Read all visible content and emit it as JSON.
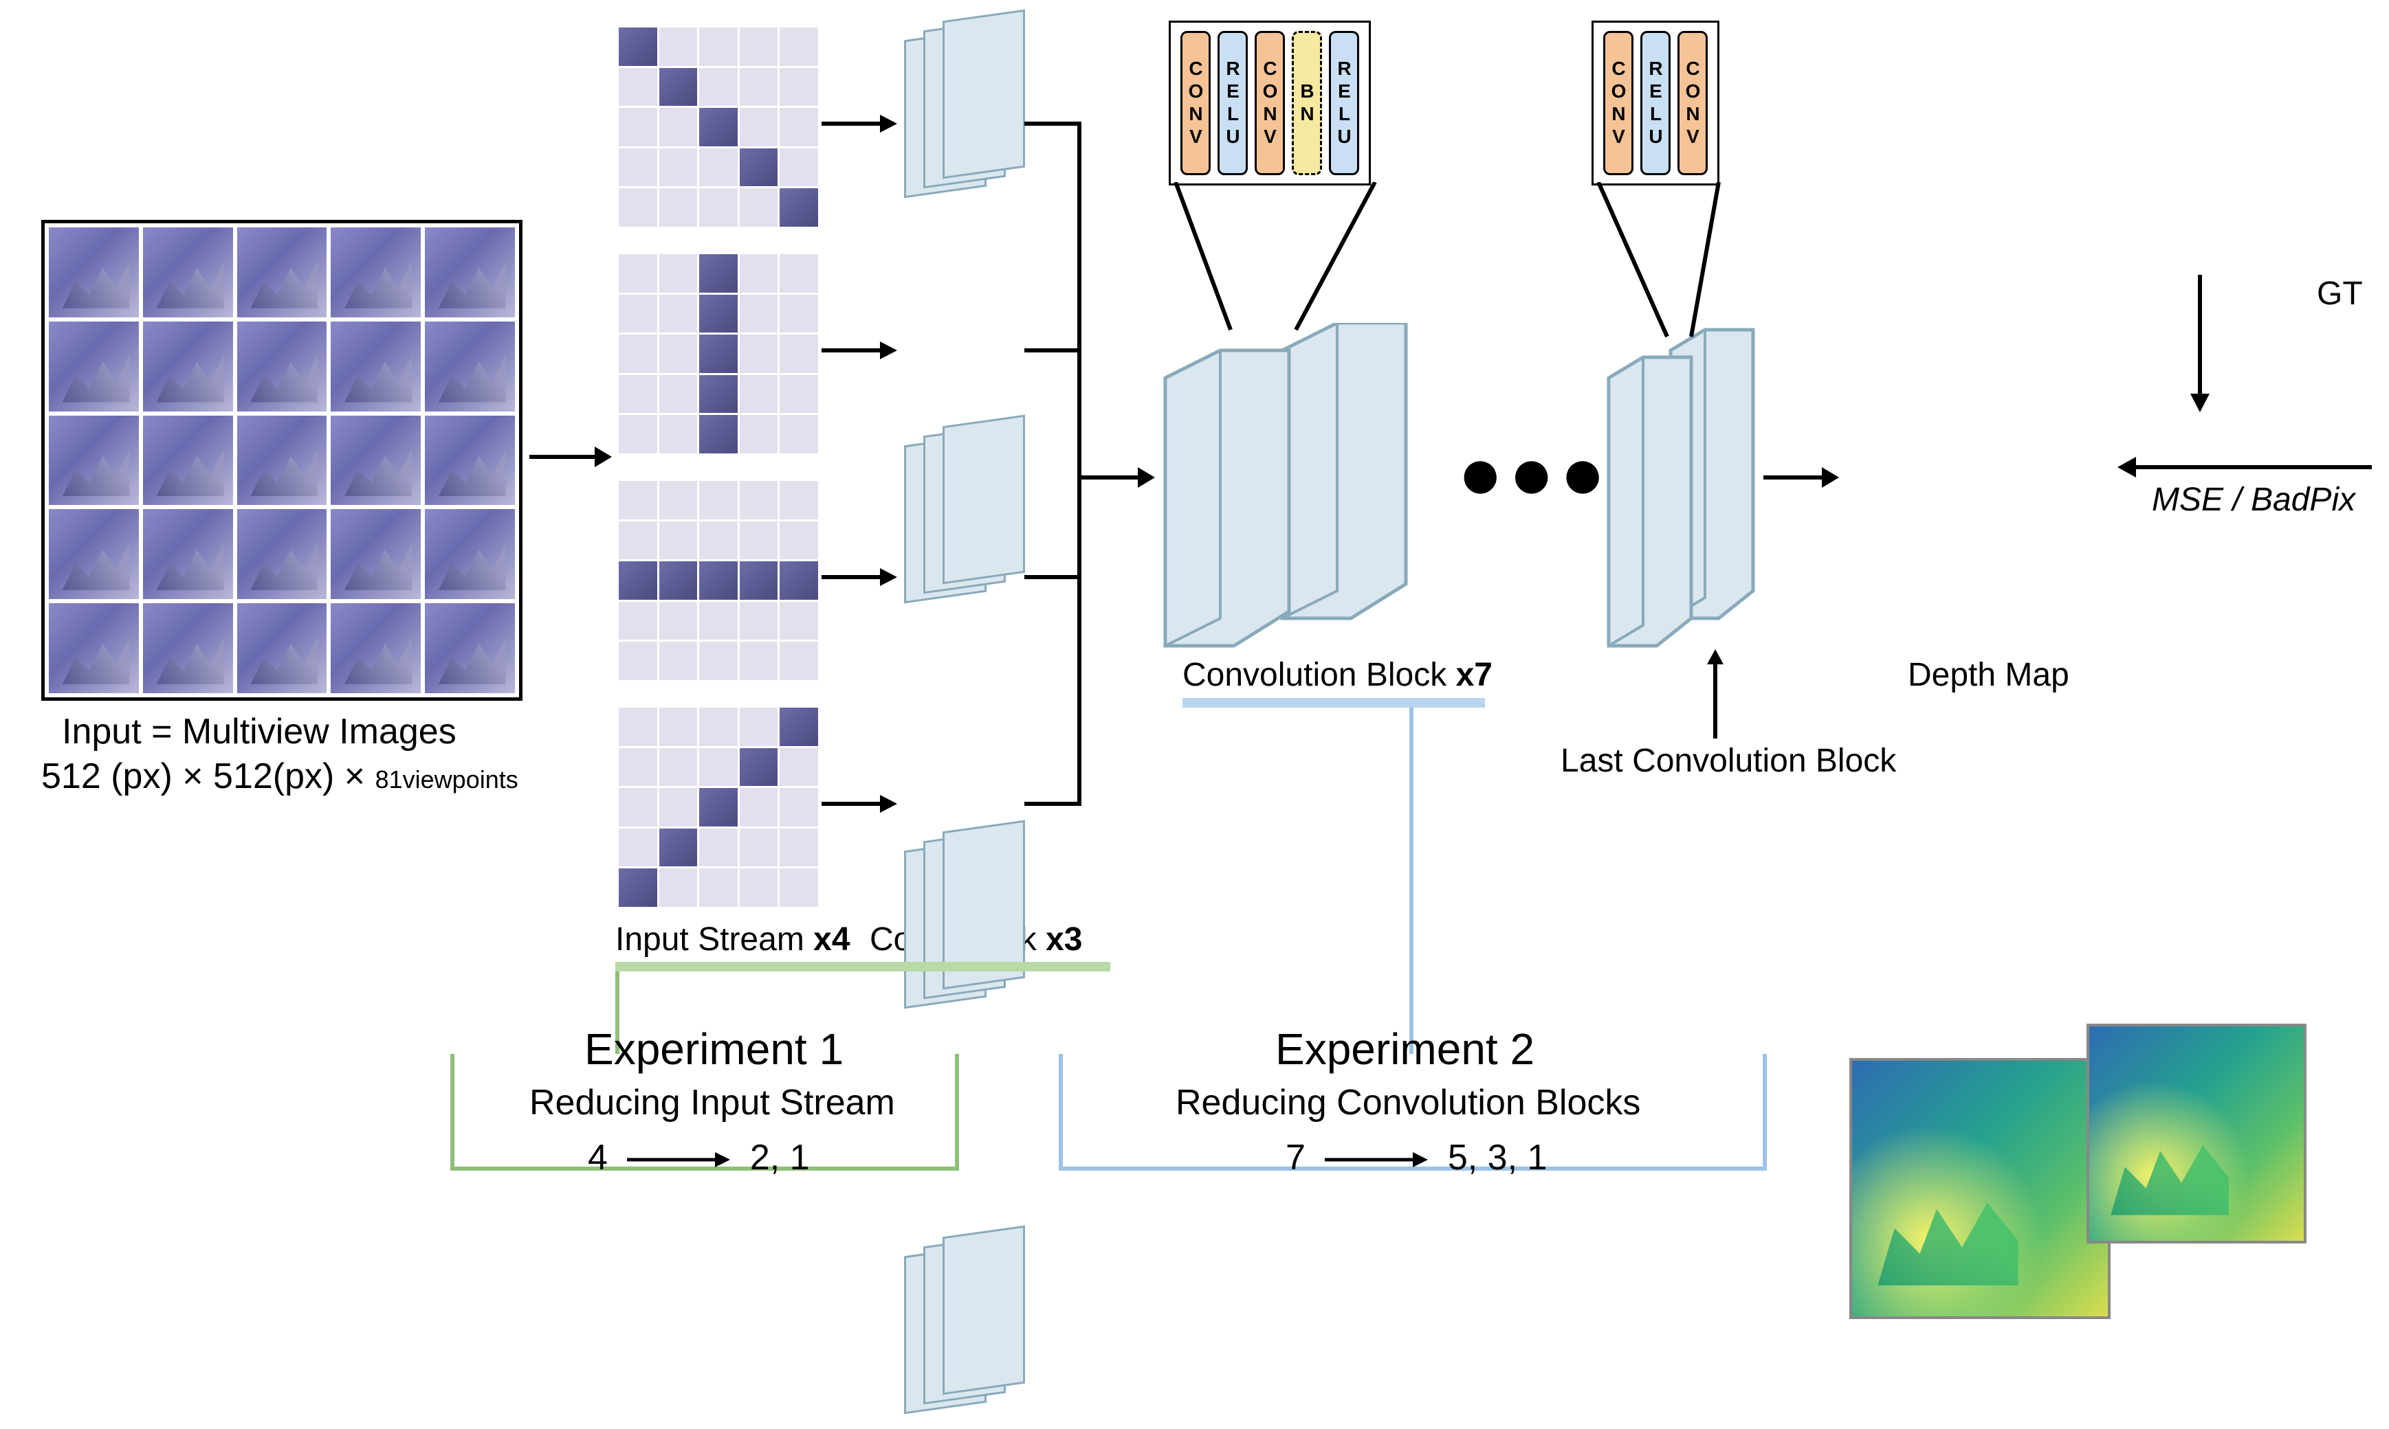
{
  "input": {
    "caption": "Input = Multiview Images",
    "dims_prefix": "512 (px)  × 512(px)  ×",
    "dims_suffix": "81viewpoints",
    "grid": 5
  },
  "streams": {
    "count": 4,
    "label": "Input Stream",
    "mult": "x4",
    "tile_bg": "#e2e0ed",
    "tile_dark": "#5a5a95",
    "dark_cells": {
      "0": [
        0,
        6,
        12,
        18,
        24
      ],
      "1": [
        2,
        7,
        12,
        17,
        22
      ],
      "2": [
        10,
        11,
        12,
        13,
        14
      ],
      "3": [
        4,
        8,
        12,
        16,
        20
      ]
    }
  },
  "convblocks3": {
    "label": "Conv Block",
    "mult": "x3",
    "slab_fill": "#dbe7ef",
    "slab_border": "#88aabb"
  },
  "mainblocks": {
    "label": "Convolution Block",
    "mult": "x7",
    "last_label": "Last Convolution Block",
    "fill": "#dbe7ef",
    "border": "#88aabb"
  },
  "callout_main": {
    "layers": [
      {
        "type": "CONV",
        "cls": "layer-conv"
      },
      {
        "type": "RELU",
        "cls": "layer-relu"
      },
      {
        "type": "CONV",
        "cls": "layer-conv"
      },
      {
        "type": "BN",
        "cls": "layer-bn"
      },
      {
        "type": "RELU",
        "cls": "layer-relu"
      }
    ]
  },
  "callout_last": {
    "layers": [
      {
        "type": "CONV",
        "cls": "layer-conv"
      },
      {
        "type": "RELU",
        "cls": "layer-relu"
      },
      {
        "type": "CONV",
        "cls": "layer-conv"
      }
    ]
  },
  "outputs": {
    "depth_label": "Depth Map",
    "gt_label": "GT",
    "metric": "MSE / BadPix"
  },
  "exp1": {
    "title": "Experiment 1",
    "sub": "Reducing Input Stream",
    "from": "4",
    "to": "2, 1",
    "color": "#8fbf78",
    "underline_color": "#b9d9a7"
  },
  "exp2": {
    "title": "Experiment 2",
    "sub": "Reducing Convolution Blocks",
    "from": "7",
    "to": "5, 3, 1",
    "color": "#9cc3e6",
    "underline_color": "#b8d4ee"
  },
  "colors": {
    "bg": "#ffffff",
    "text": "#000000"
  }
}
